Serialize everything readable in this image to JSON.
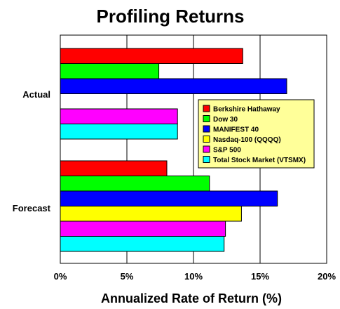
{
  "chart_data": {
    "type": "bar",
    "orientation": "horizontal",
    "title": "Profiling Returns",
    "xlabel": "Annualized Rate of Return (%)",
    "ylabel": "",
    "xlim": [
      0,
      20
    ],
    "x_ticks": [
      0,
      5,
      10,
      15,
      20
    ],
    "x_tick_labels": [
      "0%",
      "5%",
      "10%",
      "15%",
      "20%"
    ],
    "grid": "vertical",
    "legend_position": "right",
    "categories": [
      "Actual",
      "Forecast"
    ],
    "series": [
      {
        "name": "Berkshire Hathaway",
        "color": "#ff0000",
        "values": [
          13.7,
          8.0
        ]
      },
      {
        "name": "Dow 30",
        "color": "#00ff00",
        "values": [
          7.4,
          11.2
        ]
      },
      {
        "name": "MANIFEST 40",
        "color": "#0000ff",
        "values": [
          17.0,
          16.3
        ]
      },
      {
        "name": "Nasdaq-100 (QQQQ)",
        "color": "#ffff00",
        "values": [
          null,
          13.6
        ]
      },
      {
        "name": "S&P 500",
        "color": "#ff00ff",
        "values": [
          8.8,
          12.4
        ]
      },
      {
        "name": "Total Stock Market (VTSMX)",
        "color": "#00ffff",
        "values": [
          8.8,
          12.3
        ]
      }
    ]
  }
}
